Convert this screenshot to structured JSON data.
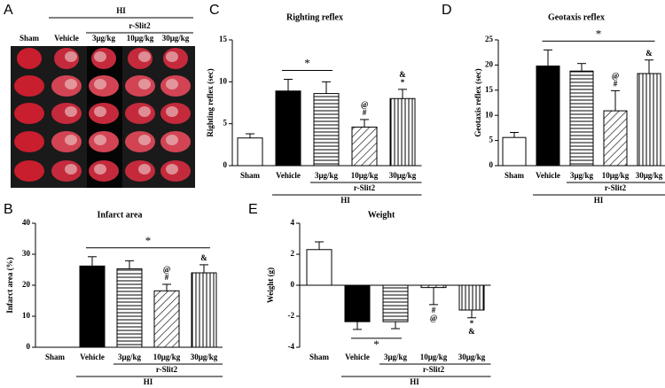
{
  "figure_a": {
    "panel": "A",
    "categories": [
      "Sham",
      "Vehicle",
      "3μg/kg",
      "10μg/kg",
      "30μg/kg"
    ],
    "groups": [
      {
        "label": "HI",
        "span": [
          1,
          4
        ]
      },
      {
        "label": "r-Slit2",
        "span": [
          2,
          4
        ]
      }
    ]
  },
  "chart_data": [
    {
      "type": "bar",
      "panel": "C",
      "title": "Righting reflex",
      "ylabel": "Righting reflex (sec)",
      "categories": [
        "Sham",
        "Vehicle",
        "3μg/kg",
        "10μg/kg",
        "30μg/kg"
      ],
      "values": [
        3.3,
        8.9,
        8.6,
        4.6,
        8.0
      ],
      "errors": [
        0.5,
        1.4,
        1.4,
        0.9,
        1.1
      ],
      "patterns": [
        "white",
        "black",
        "horizontal",
        "diagonal",
        "vertical"
      ],
      "ylim": [
        0,
        15
      ],
      "yticks": [
        0,
        5,
        10,
        15
      ],
      "bar_labels": [
        [],
        [],
        [],
        [
          "#",
          "@"
        ],
        [
          "*",
          "&"
        ]
      ],
      "brackets": [
        {
          "label": "*",
          "span": [
            1,
            2
          ]
        }
      ],
      "groups": [
        {
          "label": "r-Slit2",
          "span": [
            2,
            4
          ]
        },
        {
          "label": "HI",
          "span": [
            1,
            4
          ]
        }
      ]
    },
    {
      "type": "bar",
      "panel": "D",
      "title": "Geotaxis reflex",
      "ylabel": "Geotaxis reflex (sec)",
      "categories": [
        "Sham",
        "Vehicle",
        "3μg/kg",
        "10μg/kg",
        "30μg/kg"
      ],
      "values": [
        5.6,
        19.8,
        18.8,
        10.9,
        18.3
      ],
      "errors": [
        1.0,
        3.2,
        1.5,
        4.0,
        2.7
      ],
      "patterns": [
        "white",
        "black",
        "horizontal",
        "diagonal",
        "vertical"
      ],
      "ylim": [
        0,
        25
      ],
      "yticks": [
        0,
        5,
        10,
        15,
        20,
        25
      ],
      "bar_labels": [
        [],
        [],
        [],
        [
          "#",
          "@"
        ],
        [
          "&"
        ]
      ],
      "brackets": [
        {
          "label": "*",
          "span": [
            1,
            4
          ]
        }
      ],
      "groups": [
        {
          "label": "r-Slit2",
          "span": [
            2,
            4
          ]
        },
        {
          "label": "HI",
          "span": [
            1,
            4
          ]
        }
      ]
    },
    {
      "type": "bar",
      "panel": "B",
      "title": "Infarct area",
      "ylabel": "Infarct area (%)",
      "categories": [
        "Sham",
        "Vehicle",
        "3μg/kg",
        "10μg/kg",
        "30μg/kg"
      ],
      "values": [
        0,
        26.2,
        25.3,
        18.2,
        24.0
      ],
      "errors": [
        0,
        3.0,
        2.6,
        2.1,
        2.6
      ],
      "patterns": [
        "white",
        "black",
        "horizontal",
        "diagonal",
        "vertical"
      ],
      "ylim": [
        0,
        40
      ],
      "yticks": [
        0,
        10,
        20,
        30,
        40
      ],
      "bar_labels": [
        [],
        [],
        [],
        [
          "#",
          "@"
        ],
        [
          "&"
        ]
      ],
      "brackets": [
        {
          "label": "*",
          "span": [
            1,
            4
          ]
        }
      ],
      "groups": [
        {
          "label": "r-Slit2",
          "span": [
            2,
            4
          ]
        },
        {
          "label": "HI",
          "span": [
            1,
            4
          ]
        }
      ]
    },
    {
      "type": "bar",
      "panel": "E",
      "title": "Weight",
      "ylabel": "Weight (g)",
      "categories": [
        "Sham",
        "Vehicle",
        "3μg/kg",
        "10μg/kg",
        "30μg/kg"
      ],
      "values": [
        2.3,
        -2.35,
        -2.35,
        -0.15,
        -1.6
      ],
      "errors": [
        0.5,
        0.5,
        0.45,
        1.1,
        0.5
      ],
      "patterns": [
        "white",
        "black",
        "horizontal",
        "diagonal",
        "vertical"
      ],
      "ylim": [
        -4,
        4
      ],
      "yticks": [
        -4,
        -2,
        0,
        2,
        4
      ],
      "bar_labels": [
        [],
        [],
        [],
        [
          "#",
          "@"
        ],
        [
          "*",
          "&"
        ]
      ],
      "brackets": [
        {
          "label": "*",
          "span": [
            1,
            2
          ]
        }
      ],
      "groups": [
        {
          "label": "r-Slit2",
          "span": [
            2,
            4
          ]
        },
        {
          "label": "HI",
          "span": [
            1,
            4
          ]
        }
      ]
    }
  ]
}
